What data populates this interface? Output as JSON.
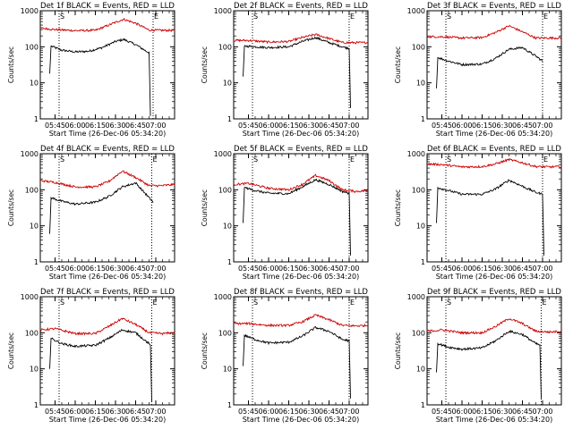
{
  "page": {
    "background": "#ffffff",
    "events_color": "#000000",
    "lld_color": "#cc0000"
  },
  "chart_data": [
    {
      "type": "line",
      "panel": 1,
      "title": "Det 1f BLACK = Events, RED = LLD",
      "xlabel": "Start Time (26-Dec-06 05:34:20)",
      "ylabel": "Counts/sec",
      "xticks": [
        "05:45",
        "06:00",
        "06:15",
        "06:30",
        "06:45",
        "07:00"
      ],
      "yticks": [
        "1",
        "10",
        "100",
        "1000"
      ],
      "ylim": [
        1,
        1000
      ],
      "yscale": "log",
      "xlim": [
        "05:34",
        "07:14"
      ],
      "markers": [
        {
          "label": "S",
          "time": "05:48"
        },
        {
          "label": "E",
          "time": "06:58"
        }
      ],
      "series": [
        {
          "name": "Events",
          "color": "#000000",
          "x": [
            "05:41",
            "05:42",
            "05:50",
            "06:00",
            "06:10",
            "06:20",
            "06:30",
            "06:36",
            "06:45",
            "06:53",
            "06:55",
            "06:56"
          ],
          "y": [
            18,
            105,
            80,
            72,
            75,
            95,
            140,
            160,
            115,
            75,
            70,
            1.2
          ]
        },
        {
          "name": "LLD",
          "color": "#cc0000",
          "x": [
            "05:34",
            "05:45",
            "06:00",
            "06:15",
            "06:25",
            "06:36",
            "06:45",
            "06:55",
            "07:05",
            "07:14"
          ],
          "y": [
            330,
            300,
            280,
            285,
            400,
            580,
            450,
            290,
            285,
            285
          ]
        }
      ]
    },
    {
      "type": "line",
      "panel": 2,
      "title": "Det 2f BLACK = Events, RED = LLD",
      "xlabel": "Start Time (26-Dec-06 05:34:20)",
      "ylabel": "Counts/sec",
      "xticks": [
        "05:45",
        "06:00",
        "06:15",
        "06:30",
        "06:45",
        "07:00"
      ],
      "yticks": [
        "1",
        "10",
        "100",
        "1000"
      ],
      "ylim": [
        1,
        1000
      ],
      "yscale": "log",
      "xlim": [
        "05:34",
        "07:14"
      ],
      "markers": [
        {
          "label": "S",
          "time": "05:48"
        },
        {
          "label": "E",
          "time": "07:00"
        }
      ],
      "series": [
        {
          "name": "Events",
          "color": "#000000",
          "x": [
            "05:41",
            "05:42",
            "05:50",
            "06:00",
            "06:15",
            "06:25",
            "06:35",
            "06:45",
            "06:55",
            "07:00",
            "07:01"
          ],
          "y": [
            15,
            105,
            100,
            95,
            100,
            140,
            180,
            130,
            100,
            90,
            2
          ]
        },
        {
          "name": "LLD",
          "color": "#cc0000",
          "x": [
            "05:34",
            "05:45",
            "06:00",
            "06:15",
            "06:25",
            "06:35",
            "06:45",
            "06:55",
            "07:05",
            "07:14"
          ],
          "y": [
            150,
            150,
            135,
            140,
            180,
            220,
            170,
            130,
            130,
            130
          ]
        }
      ]
    },
    {
      "type": "line",
      "panel": 3,
      "title": "Det 3f BLACK = Events, RED = LLD",
      "xlabel": "Start Time (26-Dec-06 05:34:20)",
      "ylabel": "Counts/sec",
      "xticks": [
        "05:45",
        "06:00",
        "06:15",
        "06:30",
        "06:45",
        "07:00"
      ],
      "yticks": [
        "1",
        "10",
        "100",
        "1000"
      ],
      "ylim": [
        1,
        1000
      ],
      "yscale": "log",
      "xlim": [
        "05:34",
        "07:14"
      ],
      "markers": [
        {
          "label": "S",
          "time": "05:48"
        },
        {
          "label": "E",
          "time": "07:00"
        }
      ],
      "series": [
        {
          "name": "Events",
          "color": "#000000",
          "x": [
            "05:41",
            "05:42",
            "05:50",
            "06:00",
            "06:15",
            "06:25",
            "06:35",
            "06:45",
            "06:55",
            "07:00"
          ],
          "y": [
            7,
            50,
            40,
            32,
            33,
            48,
            85,
            95,
            55,
            40
          ]
        },
        {
          "name": "LLD",
          "color": "#cc0000",
          "x": [
            "05:34",
            "05:45",
            "06:00",
            "06:15",
            "06:25",
            "06:35",
            "06:45",
            "06:55",
            "07:05",
            "07:14"
          ],
          "y": [
            190,
            190,
            175,
            180,
            250,
            380,
            260,
            175,
            175,
            175
          ]
        }
      ]
    },
    {
      "type": "line",
      "panel": 4,
      "title": "Det 4f BLACK = Events, RED = LLD",
      "xlabel": "Start Time (26-Dec-06 05:34:20)",
      "ylabel": "Counts/sec",
      "xticks": [
        "05:45",
        "06:00",
        "06:15",
        "06:30",
        "06:45",
        "07:00"
      ],
      "yticks": [
        "1",
        "10",
        "100",
        "1000"
      ],
      "ylim": [
        1,
        1000
      ],
      "yscale": "log",
      "xlim": [
        "05:34",
        "07:14"
      ],
      "markers": [
        {
          "label": "S",
          "time": "05:48"
        },
        {
          "label": "E",
          "time": "06:57"
        }
      ],
      "series": [
        {
          "name": "Events",
          "color": "#000000",
          "x": [
            "05:41",
            "05:42",
            "05:50",
            "06:00",
            "06:15",
            "06:25",
            "06:35",
            "06:45",
            "06:55",
            "06:58"
          ],
          "y": [
            6,
            60,
            48,
            40,
            45,
            65,
            120,
            155,
            60,
            45
          ]
        },
        {
          "name": "LLD",
          "color": "#cc0000",
          "x": [
            "05:34",
            "05:45",
            "06:00",
            "06:15",
            "06:25",
            "06:35",
            "06:45",
            "06:55",
            "07:05",
            "07:14"
          ],
          "y": [
            180,
            160,
            120,
            120,
            170,
            330,
            220,
            130,
            130,
            140
          ]
        }
      ]
    },
    {
      "type": "line",
      "panel": 5,
      "title": "Det 5f BLACK = Events, RED = LLD",
      "xlabel": "Start Time (26-Dec-06 05:34:20)",
      "ylabel": "Counts/sec",
      "xticks": [
        "05:45",
        "06:00",
        "06:15",
        "06:30",
        "06:45",
        "07:00"
      ],
      "yticks": [
        "1",
        "10",
        "100",
        "1000"
      ],
      "ylim": [
        1,
        1000
      ],
      "yscale": "log",
      "xlim": [
        "05:34",
        "07:14"
      ],
      "markers": [
        {
          "label": "S",
          "time": "05:48"
        },
        {
          "label": "E",
          "time": "07:00"
        }
      ],
      "series": [
        {
          "name": "Events",
          "color": "#000000",
          "x": [
            "05:41",
            "05:42",
            "05:50",
            "06:00",
            "06:15",
            "06:25",
            "06:35",
            "06:45",
            "06:55",
            "07:00",
            "07:01"
          ],
          "y": [
            12,
            115,
            95,
            80,
            78,
            120,
            190,
            140,
            90,
            80,
            1.5
          ]
        },
        {
          "name": "LLD",
          "color": "#cc0000",
          "x": [
            "05:34",
            "05:45",
            "06:00",
            "06:15",
            "06:25",
            "06:35",
            "06:45",
            "06:55",
            "07:05",
            "07:14"
          ],
          "y": [
            140,
            150,
            110,
            100,
            140,
            250,
            180,
            100,
            90,
            95
          ]
        }
      ]
    },
    {
      "type": "line",
      "panel": 6,
      "title": "Det 6f BLACK = Events, RED = LLD",
      "xlabel": "Start Time (26-Dec-06 05:34:20)",
      "ylabel": "Counts/sec",
      "xticks": [
        "05:45",
        "06:00",
        "06:15",
        "06:30",
        "06:45",
        "07:00"
      ],
      "yticks": [
        "1",
        "10",
        "100",
        "1000"
      ],
      "ylim": [
        1,
        1000
      ],
      "yscale": "log",
      "xlim": [
        "05:34",
        "07:14"
      ],
      "markers": [
        {
          "label": "S",
          "time": "05:48"
        },
        {
          "label": "E",
          "time": "07:00"
        }
      ],
      "series": [
        {
          "name": "Events",
          "color": "#000000",
          "x": [
            "05:41",
            "05:42",
            "05:50",
            "06:00",
            "06:15",
            "06:25",
            "06:35",
            "06:45",
            "06:55",
            "07:00",
            "07:01"
          ],
          "y": [
            12,
            115,
            95,
            75,
            75,
            105,
            185,
            125,
            85,
            75,
            1.5
          ]
        },
        {
          "name": "LLD",
          "color": "#cc0000",
          "x": [
            "05:34",
            "05:45",
            "06:00",
            "06:15",
            "06:25",
            "06:35",
            "06:45",
            "06:55",
            "07:05",
            "07:14"
          ],
          "y": [
            520,
            500,
            430,
            440,
            520,
            690,
            560,
            440,
            430,
            440
          ]
        }
      ]
    },
    {
      "type": "line",
      "panel": 7,
      "title": "Det 7f BLACK = Events, RED = LLD",
      "xlabel": "Start Time (26-Dec-06 05:34:20)",
      "ylabel": "Counts/sec",
      "xticks": [
        "05:45",
        "06:00",
        "06:15",
        "06:30",
        "06:45",
        "07:00"
      ],
      "yticks": [
        "1",
        "10",
        "100",
        "1000"
      ],
      "ylim": [
        1,
        1000
      ],
      "yscale": "log",
      "xlim": [
        "05:34",
        "07:14"
      ],
      "markers": [
        {
          "label": "S",
          "time": "05:48"
        },
        {
          "label": "E",
          "time": "06:57"
        }
      ],
      "series": [
        {
          "name": "Events",
          "color": "#000000",
          "x": [
            "05:41",
            "05:42",
            "05:50",
            "06:00",
            "06:15",
            "06:25",
            "06:35",
            "06:45",
            "06:55",
            "06:56",
            "06:57"
          ],
          "y": [
            10,
            70,
            50,
            42,
            45,
            70,
            120,
            100,
            50,
            45,
            1.2
          ]
        },
        {
          "name": "LLD",
          "color": "#cc0000",
          "x": [
            "05:34",
            "05:45",
            "06:00",
            "06:15",
            "06:25",
            "06:35",
            "06:45",
            "06:55",
            "07:05",
            "07:14"
          ],
          "y": [
            120,
            130,
            95,
            95,
            150,
            250,
            170,
            100,
            95,
            100
          ]
        }
      ]
    },
    {
      "type": "line",
      "panel": 8,
      "title": "Det 8f BLACK = Events, RED = LLD",
      "xlabel": "Start Time (26-Dec-06 05:34:20)",
      "ylabel": "Counts/sec",
      "xticks": [
        "05:45",
        "06:00",
        "06:15",
        "06:30",
        "06:45",
        "07:00"
      ],
      "yticks": [
        "1",
        "10",
        "100",
        "1000"
      ],
      "ylim": [
        1,
        1000
      ],
      "yscale": "log",
      "xlim": [
        "05:34",
        "07:14"
      ],
      "markers": [
        {
          "label": "S",
          "time": "05:48"
        },
        {
          "label": "E",
          "time": "07:00"
        }
      ],
      "series": [
        {
          "name": "Events",
          "color": "#000000",
          "x": [
            "05:41",
            "05:42",
            "05:50",
            "06:00",
            "06:15",
            "06:25",
            "06:35",
            "06:45",
            "06:55",
            "07:00",
            "07:01"
          ],
          "y": [
            12,
            85,
            65,
            52,
            55,
            80,
            140,
            110,
            65,
            60,
            1.5
          ]
        },
        {
          "name": "LLD",
          "color": "#cc0000",
          "x": [
            "05:34",
            "05:45",
            "06:00",
            "06:15",
            "06:25",
            "06:35",
            "06:45",
            "06:55",
            "07:05",
            "07:14"
          ],
          "y": [
            180,
            180,
            160,
            160,
            200,
            310,
            230,
            160,
            155,
            160
          ]
        }
      ]
    },
    {
      "type": "line",
      "panel": 9,
      "title": "Det 9f BLACK = Events, RED = LLD",
      "xlabel": "Start Time (26-Dec-06 05:34:20)",
      "ylabel": "Counts/sec",
      "xticks": [
        "05:45",
        "06:00",
        "06:15",
        "06:30",
        "06:45",
        "07:00"
      ],
      "yticks": [
        "1",
        "10",
        "100",
        "1000"
      ],
      "ylim": [
        1,
        1000
      ],
      "yscale": "log",
      "xlim": [
        "05:34",
        "07:14"
      ],
      "markers": [
        {
          "label": "S",
          "time": "05:48"
        },
        {
          "label": "E",
          "time": "06:59"
        }
      ],
      "series": [
        {
          "name": "Events",
          "color": "#000000",
          "x": [
            "05:41",
            "05:42",
            "05:50",
            "06:00",
            "06:15",
            "06:25",
            "06:35",
            "06:45",
            "06:55",
            "06:58",
            "06:59"
          ],
          "y": [
            8,
            50,
            40,
            35,
            38,
            60,
            110,
            90,
            50,
            45,
            1.5
          ]
        },
        {
          "name": "LLD",
          "color": "#cc0000",
          "x": [
            "05:34",
            "05:45",
            "06:00",
            "06:15",
            "06:25",
            "06:35",
            "06:45",
            "06:55",
            "07:05",
            "07:14"
          ],
          "y": [
            110,
            120,
            100,
            100,
            150,
            250,
            180,
            110,
            105,
            110
          ]
        }
      ]
    }
  ]
}
